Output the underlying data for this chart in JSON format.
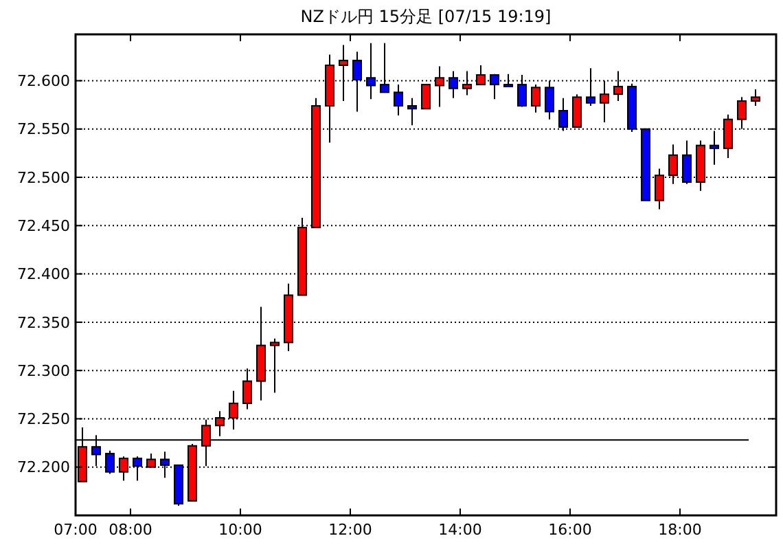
{
  "chart_data": {
    "type": "candlestick",
    "title": "NZドル円 15分足 [07/15 19:19]",
    "x": [
      7.125,
      7.375,
      7.625,
      7.875,
      8.125,
      8.375,
      8.625,
      8.875,
      9.125,
      9.375,
      9.625,
      9.875,
      10.125,
      10.375,
      10.625,
      10.875,
      11.125,
      11.375,
      11.625,
      11.875,
      12.125,
      12.375,
      12.625,
      12.875,
      13.125,
      13.375,
      13.625,
      13.875,
      14.125,
      14.375,
      14.625,
      14.875,
      15.125,
      15.375,
      15.625,
      15.875,
      16.125,
      16.375,
      16.625,
      16.875,
      17.125,
      17.375,
      17.625,
      17.875,
      18.125,
      18.375,
      18.625,
      18.875,
      19.125,
      19.375
    ],
    "ohlc": [
      [
        72.185,
        72.241,
        72.185,
        72.221
      ],
      [
        72.221,
        72.233,
        72.201,
        72.213
      ],
      [
        72.214,
        72.217,
        72.193,
        72.195
      ],
      [
        72.195,
        72.211,
        72.186,
        72.209
      ],
      [
        72.209,
        72.211,
        72.186,
        72.201
      ],
      [
        72.2,
        72.214,
        72.2,
        72.208
      ],
      [
        72.208,
        72.216,
        72.189,
        72.202
      ],
      [
        72.202,
        72.202,
        72.16,
        72.162
      ],
      [
        72.165,
        72.224,
        72.165,
        72.222
      ],
      [
        72.222,
        72.249,
        72.201,
        72.243
      ],
      [
        72.243,
        72.258,
        72.232,
        72.251
      ],
      [
        72.251,
        72.279,
        72.239,
        72.266
      ],
      [
        72.266,
        72.302,
        72.26,
        72.289
      ],
      [
        72.289,
        72.366,
        72.269,
        72.326
      ],
      [
        72.326,
        72.333,
        72.277,
        72.329
      ],
      [
        72.329,
        72.39,
        72.32,
        72.378
      ],
      [
        72.378,
        72.458,
        72.378,
        72.448
      ],
      [
        72.448,
        72.582,
        72.448,
        72.574
      ],
      [
        72.574,
        72.627,
        72.536,
        72.616
      ],
      [
        72.616,
        72.637,
        72.579,
        72.621
      ],
      [
        72.621,
        72.63,
        72.568,
        72.601
      ],
      [
        72.603,
        72.639,
        72.581,
        72.595
      ],
      [
        72.596,
        72.639,
        72.588,
        72.588
      ],
      [
        72.588,
        72.596,
        72.564,
        72.574
      ],
      [
        72.574,
        72.582,
        72.554,
        72.571
      ],
      [
        72.571,
        72.596,
        72.571,
        72.596
      ],
      [
        72.595,
        72.615,
        72.573,
        72.603
      ],
      [
        72.603,
        72.61,
        72.582,
        72.592
      ],
      [
        72.592,
        72.61,
        72.585,
        72.596
      ],
      [
        72.596,
        72.616,
        72.596,
        72.606
      ],
      [
        72.606,
        72.607,
        72.581,
        72.596
      ],
      [
        72.596,
        72.607,
        72.594,
        72.594
      ],
      [
        72.596,
        72.606,
        72.573,
        72.574
      ],
      [
        72.574,
        72.596,
        72.567,
        72.593
      ],
      [
        72.593,
        72.6,
        72.56,
        72.568
      ],
      [
        72.569,
        72.582,
        72.548,
        72.552
      ],
      [
        72.552,
        72.586,
        72.552,
        72.583
      ],
      [
        72.583,
        72.613,
        72.574,
        72.577
      ],
      [
        72.577,
        72.6,
        72.557,
        72.586
      ],
      [
        72.586,
        72.61,
        72.579,
        72.594
      ],
      [
        72.594,
        72.597,
        72.547,
        72.55
      ],
      [
        72.55,
        72.55,
        72.476,
        72.476
      ],
      [
        72.476,
        72.509,
        72.467,
        72.502
      ],
      [
        72.502,
        72.534,
        72.493,
        72.523
      ],
      [
        72.523,
        72.538,
        72.493,
        72.495
      ],
      [
        72.495,
        72.538,
        72.486,
        72.533
      ],
      [
        72.533,
        72.548,
        72.513,
        72.53
      ],
      [
        72.53,
        72.565,
        72.52,
        72.56
      ],
      [
        72.56,
        72.583,
        72.55,
        72.579
      ],
      [
        72.579,
        72.591,
        72.574,
        72.583
      ]
    ],
    "colors": [
      "#ff0000",
      "#0000ff",
      "#0000ff",
      "#ff0000",
      "#0000ff",
      "#ff0000",
      "#0000ff",
      "#0000ff",
      "#ff0000",
      "#ff0000",
      "#ff0000",
      "#ff0000",
      "#ff0000",
      "#ff0000",
      "#ff0000",
      "#ff0000",
      "#ff0000",
      "#ff0000",
      "#ff0000",
      "#ff0000",
      "#0000ff",
      "#0000ff",
      "#0000ff",
      "#0000ff",
      "#0000ff",
      "#ff0000",
      "#ff0000",
      "#0000ff",
      "#ff0000",
      "#ff0000",
      "#0000ff",
      "#0000ff",
      "#0000ff",
      "#ff0000",
      "#0000ff",
      "#0000ff",
      "#ff0000",
      "#0000ff",
      "#ff0000",
      "#ff0000",
      "#0000ff",
      "#0000ff",
      "#ff0000",
      "#ff0000",
      "#0000ff",
      "#ff0000",
      "#0000ff",
      "#ff0000",
      "#ff0000",
      "#ff0000"
    ],
    "xlim": [
      7,
      19.75
    ],
    "xticks": [
      {
        "value": 7,
        "label": "07:00"
      },
      {
        "value": 8,
        "label": "08:00"
      },
      {
        "value": 10,
        "label": "10:00"
      },
      {
        "value": 12,
        "label": "12:00"
      },
      {
        "value": 14,
        "label": "14:00"
      },
      {
        "value": 16,
        "label": "16:00"
      },
      {
        "value": 18,
        "label": "18:00"
      }
    ],
    "ylim": [
      72.15,
      72.648
    ],
    "yticks": [
      {
        "value": 72.2,
        "label": "72.200"
      },
      {
        "value": 72.25,
        "label": "72.250"
      },
      {
        "value": 72.3,
        "label": "72.300"
      },
      {
        "value": 72.35,
        "label": "72.350"
      },
      {
        "value": 72.4,
        "label": "72.400"
      },
      {
        "value": 72.45,
        "label": "72.450"
      },
      {
        "value": 72.5,
        "label": "72.500"
      },
      {
        "value": 72.55,
        "label": "72.550"
      },
      {
        "value": 72.6,
        "label": "72.600"
      }
    ],
    "grid": "y",
    "ref_lines": [
      {
        "axis": "y",
        "value": 72.228,
        "color": "#000000",
        "line_style": "solid"
      }
    ]
  }
}
